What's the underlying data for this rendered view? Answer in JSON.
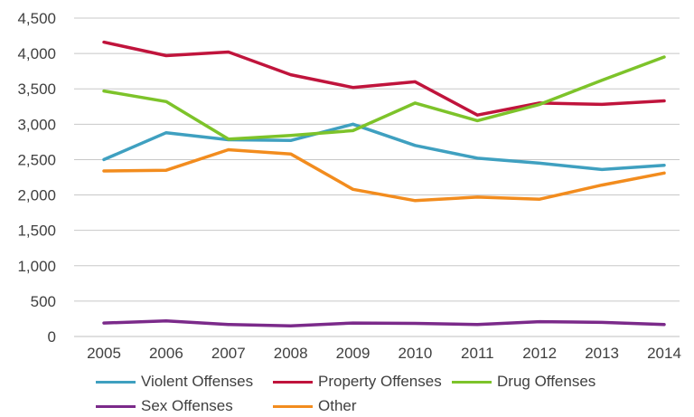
{
  "chart_data": {
    "type": "line",
    "categories": [
      "2005",
      "2006",
      "2007",
      "2008",
      "2009",
      "2010",
      "2011",
      "2012",
      "2013",
      "2014"
    ],
    "ylim": [
      0,
      4500
    ],
    "yticks": [
      0,
      500,
      1000,
      1500,
      2000,
      2500,
      3000,
      3500,
      4000,
      4500
    ],
    "ytick_labels": [
      "0",
      "500",
      "1,000",
      "1,500",
      "2,000",
      "2,500",
      "3,000",
      "3,500",
      "4,000",
      "4,500"
    ],
    "grid": true,
    "legend_position": "bottom",
    "series": [
      {
        "name": "Violent Offenses",
        "color": "#3fa0c0",
        "values": [
          2500,
          2880,
          2780,
          2770,
          3000,
          2700,
          2520,
          2450,
          2360,
          2420
        ]
      },
      {
        "name": "Property Offenses",
        "color": "#c0143c",
        "values": [
          4160,
          3970,
          4020,
          3700,
          3520,
          3600,
          3130,
          3300,
          3280,
          3330
        ]
      },
      {
        "name": "Drug Offenses",
        "color": "#7dc32a",
        "values": [
          3470,
          3320,
          2790,
          2840,
          2910,
          3300,
          3050,
          3280,
          3620,
          3950
        ]
      },
      {
        "name": "Sex Offenses",
        "color": "#7b2a8a",
        "values": [
          190,
          220,
          170,
          150,
          190,
          185,
          170,
          210,
          200,
          170
        ]
      },
      {
        "name": "Other",
        "color": "#f28c1e",
        "values": [
          2340,
          2350,
          2640,
          2580,
          2080,
          1920,
          1970,
          1940,
          2140,
          2310
        ]
      }
    ]
  }
}
